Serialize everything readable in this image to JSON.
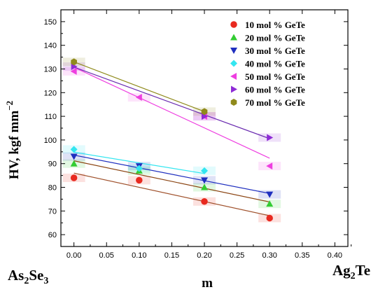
{
  "chart_data": {
    "type": "scatter",
    "xlabel": "m",
    "ylabel": "HV, kgf mm",
    "ylabel_superscript": "−2",
    "x_left_end_label": {
      "base": "As",
      "sub1": "2",
      "mid": "Se",
      "sub2": "3"
    },
    "x_right_end_label": {
      "base": "Ag",
      "sub1": "2",
      "mid": "Te"
    },
    "xlim": [
      -0.02,
      0.42
    ],
    "ylim": [
      55,
      155
    ],
    "x_ticks": [
      "0.00",
      "0.05",
      "0.10",
      "0.15",
      "0.20",
      "0.25",
      "0.30",
      "0.35",
      "0.40"
    ],
    "y_ticks": [
      "60",
      "70",
      "80",
      "90",
      "100",
      "110",
      "120",
      "130",
      "140",
      "150"
    ],
    "legend_position": "top-right",
    "series": [
      {
        "name": "10 mol % GeTe",
        "marker": "circle",
        "color": "#e8291f",
        "fitColor": "#a0522d",
        "x": [
          0.0,
          0.1,
          0.2,
          0.3
        ],
        "y": [
          84,
          83,
          74,
          67
        ]
      },
      {
        "name": "20 mol % GeTe",
        "marker": "triangle-up",
        "color": "#33cc33",
        "fitColor": "#8b4513",
        "x": [
          0.0,
          0.1,
          0.2,
          0.3
        ],
        "y": [
          90,
          87,
          80,
          73
        ]
      },
      {
        "name": "30 mol % GeTe",
        "marker": "triangle-down",
        "color": "#1f2fbf",
        "fitColor": "#1f2fbf",
        "x": [
          0.0,
          0.1,
          0.2,
          0.3
        ],
        "y": [
          93,
          89,
          83,
          77
        ]
      },
      {
        "name": "40 mol % GeTe",
        "marker": "diamond",
        "color": "#33e6f0",
        "fitColor": "#33e6f0",
        "x": [
          0.0,
          0.1,
          0.2
        ],
        "y": [
          96,
          88,
          87
        ]
      },
      {
        "name": "50 mol % GeTe",
        "marker": "triangle-left",
        "color": "#ee3ee0",
        "fitColor": "#ee3ee0",
        "x": [
          0.0,
          0.1,
          0.2,
          0.3
        ],
        "y": [
          129,
          118,
          110,
          89
        ]
      },
      {
        "name": "60 mol % GeTe",
        "marker": "triangle-right",
        "color": "#8e2bd6",
        "fitColor": "#6a2bb0",
        "x": [
          0.0,
          0.2,
          0.3
        ],
        "y": [
          131,
          110,
          101
        ]
      },
      {
        "name": "70 mol % GeTe",
        "marker": "hexagon",
        "color": "#8f8a1c",
        "fitColor": "#8f8a1c",
        "x": [
          0.0,
          0.2
        ],
        "y": [
          133,
          112
        ]
      }
    ]
  }
}
